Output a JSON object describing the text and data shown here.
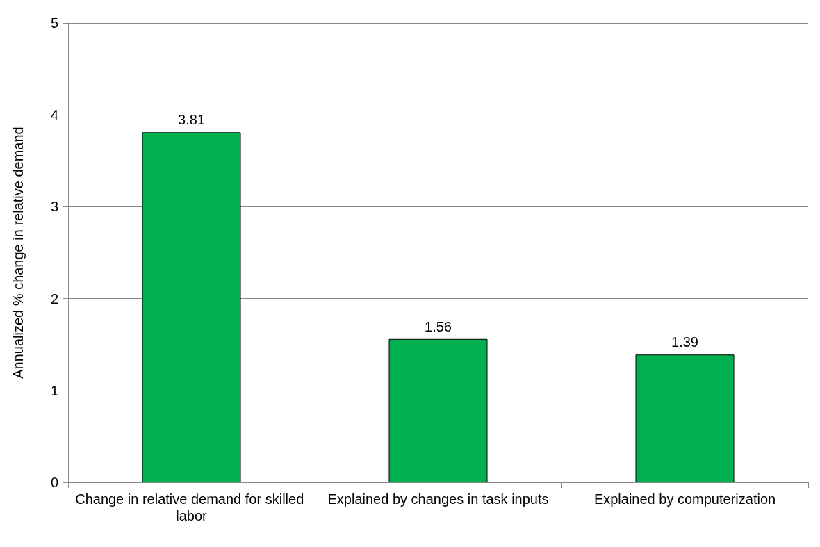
{
  "chart_data": {
    "type": "bar",
    "ylabel": "Annualized % change in relative demand",
    "categories": [
      "Change in relative demand for skilled labor",
      "Explained by changes in task inputs",
      "Explained by computerization"
    ],
    "values": [
      3.81,
      1.56,
      1.39
    ],
    "color": "#00b050",
    "ylim": [
      0,
      5
    ],
    "yticks": [
      0,
      1,
      2,
      3,
      4,
      5
    ],
    "grid": "y",
    "data_labels": true
  }
}
